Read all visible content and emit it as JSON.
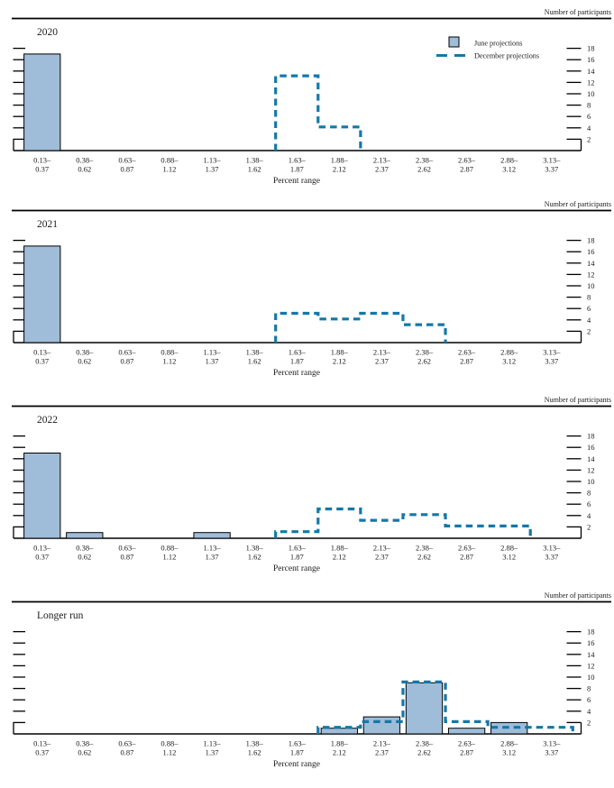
{
  "figure": {
    "header_label": "Number of participants",
    "xlabel": "Percent range",
    "legend": {
      "june_label": "June projections",
      "december_label": "December projections"
    },
    "colors": {
      "bar_fill": "#9FBCD9",
      "bar_stroke": "#000000",
      "december_line": "#1478A8",
      "axis": "#000000",
      "text": "#1a1a1a"
    },
    "y_ticks": [
      2,
      4,
      6,
      8,
      10,
      12,
      14,
      16,
      18
    ]
  },
  "chart_data": [
    {
      "type": "bar",
      "title": "2020",
      "categories": [
        "0.13–0.37",
        "0.38–0.62",
        "0.63–0.87",
        "0.88–1.12",
        "1.13–1.37",
        "1.38–1.62",
        "1.63–1.87",
        "1.88–2.12",
        "2.13–2.37",
        "2.38–2.62",
        "2.63–2.87",
        "2.88–3.12",
        "3.13–3.37"
      ],
      "series": [
        {
          "name": "June projections",
          "style": "bar",
          "values": [
            17,
            0,
            0,
            0,
            0,
            0,
            0,
            0,
            0,
            0,
            0,
            0,
            0
          ]
        },
        {
          "name": "December projections",
          "style": "dashed-step",
          "values": [
            0,
            0,
            0,
            0,
            0,
            0,
            13,
            4,
            0,
            0,
            0,
            0,
            0
          ]
        }
      ],
      "xlabel": "Percent range",
      "ylabel": "Number of participants",
      "ylim": [
        0,
        19
      ],
      "grid": false,
      "legend_position": "top-right",
      "show_legend": true
    },
    {
      "type": "bar",
      "title": "2021",
      "categories": [
        "0.13–0.37",
        "0.38–0.62",
        "0.63–0.87",
        "0.88–1.12",
        "1.13–1.37",
        "1.38–1.62",
        "1.63–1.87",
        "1.88–2.12",
        "2.13–2.37",
        "2.38–2.62",
        "2.63–2.87",
        "2.88–3.12",
        "3.13–3.37"
      ],
      "series": [
        {
          "name": "June projections",
          "style": "bar",
          "values": [
            17,
            0,
            0,
            0,
            0,
            0,
            0,
            0,
            0,
            0,
            0,
            0,
            0
          ]
        },
        {
          "name": "December projections",
          "style": "dashed-step",
          "values": [
            0,
            0,
            0,
            0,
            0,
            0,
            5,
            4,
            5,
            3,
            0,
            0,
            0
          ]
        }
      ],
      "xlabel": "Percent range",
      "ylabel": "Number of participants",
      "ylim": [
        0,
        19
      ],
      "grid": false,
      "show_legend": false
    },
    {
      "type": "bar",
      "title": "2022",
      "categories": [
        "0.13–0.37",
        "0.38–0.62",
        "0.63–0.87",
        "0.88–1.12",
        "1.13–1.37",
        "1.38–1.62",
        "1.63–1.87",
        "1.88–2.12",
        "2.13–2.37",
        "2.38–2.62",
        "2.63–2.87",
        "2.88–3.12",
        "3.13–3.37"
      ],
      "series": [
        {
          "name": "June projections",
          "style": "bar",
          "values": [
            15,
            1,
            0,
            0,
            1,
            0,
            0,
            0,
            0,
            0,
            0,
            0,
            0
          ]
        },
        {
          "name": "December projections",
          "style": "dashed-step",
          "values": [
            0,
            0,
            0,
            0,
            0,
            0,
            1,
            5,
            3,
            4,
            2,
            2,
            0
          ]
        }
      ],
      "xlabel": "Percent range",
      "ylabel": "Number of participants",
      "ylim": [
        0,
        19
      ],
      "grid": false,
      "show_legend": false
    },
    {
      "type": "bar",
      "title": "Longer run",
      "categories": [
        "0.13–0.37",
        "0.38–0.62",
        "0.63–0.87",
        "0.88–1.12",
        "1.13–1.37",
        "1.38–1.62",
        "1.63–1.87",
        "1.88–2.12",
        "2.13–2.37",
        "2.38–2.62",
        "2.63–2.87",
        "2.88–3.12",
        "3.13–3.37"
      ],
      "series": [
        {
          "name": "June projections",
          "style": "bar",
          "values": [
            0,
            0,
            0,
            0,
            0,
            0,
            0,
            1,
            3,
            9,
            1,
            2,
            0
          ]
        },
        {
          "name": "December projections",
          "style": "dashed-step",
          "values": [
            0,
            0,
            0,
            0,
            0,
            0,
            0,
            1,
            2,
            9,
            2,
            1,
            1
          ]
        }
      ],
      "xlabel": "Percent range",
      "ylabel": "Number of participants",
      "ylim": [
        0,
        19
      ],
      "grid": false,
      "show_legend": false
    }
  ]
}
